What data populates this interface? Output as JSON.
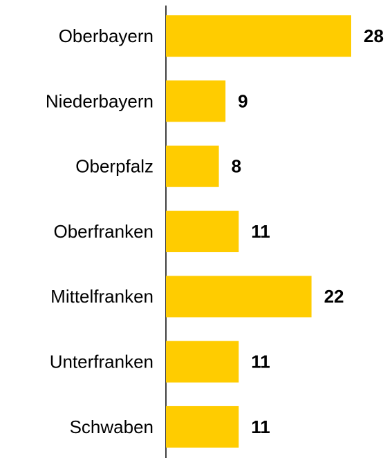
{
  "chart_data": {
    "type": "bar",
    "orientation": "horizontal",
    "categories": [
      "Oberbayern",
      "Niederbayern",
      "Oberpfalz",
      "Oberfranken",
      "Mittelfranken",
      "Unterfranken",
      "Schwaben"
    ],
    "values": [
      28,
      9,
      8,
      11,
      22,
      11,
      11
    ],
    "color": "#ffcc00"
  }
}
